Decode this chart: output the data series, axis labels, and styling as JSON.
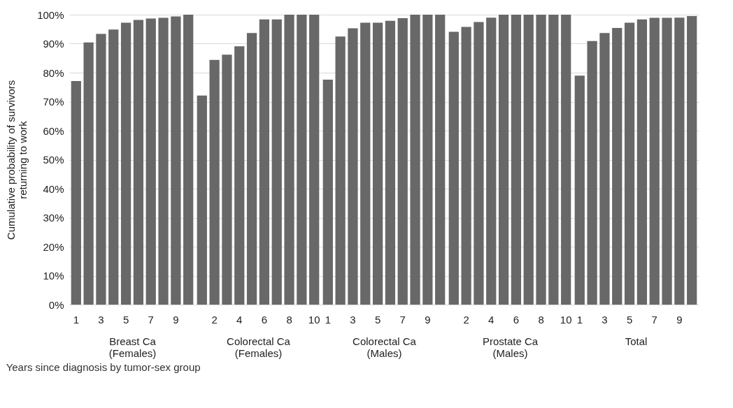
{
  "chart_data": [
    {
      "type": "bar",
      "xlabel": "Breast Ca\n(Females)",
      "ylabel": "Cumulative probability of survivors\nreturning to work",
      "color": "#686868",
      "categories": [
        "1",
        null,
        "3",
        null,
        "5",
        null,
        "7",
        null,
        "9",
        null
      ],
      "values": [
        77.1,
        90.4,
        93.4,
        94.9,
        97.2,
        98.2,
        98.7,
        98.9,
        99.4,
        100
      ],
      "ylim": [
        0,
        100
      ],
      "yticks": [
        {
          "value": 0,
          "label": "0%"
        },
        {
          "value": 10,
          "label": "10%"
        },
        {
          "value": 20,
          "label": "20%"
        },
        {
          "value": 30,
          "label": "30%"
        },
        {
          "value": 40,
          "label": "40%"
        },
        {
          "value": 50,
          "label": "50%"
        },
        {
          "value": 60,
          "label": "60%"
        },
        {
          "value": 70,
          "label": "70%"
        },
        {
          "value": 80,
          "label": "80%"
        },
        {
          "value": 90,
          "label": "90%"
        },
        {
          "value": 100,
          "label": "100%"
        }
      ],
      "grid": "y"
    },
    {
      "type": "bar",
      "xlabel": "Colorectal Ca\n(Females)",
      "color": "#686868",
      "categories": [
        null,
        "2",
        null,
        "4",
        null,
        "6",
        null,
        "8",
        null,
        "10"
      ],
      "values": [
        72.1,
        84.4,
        86.2,
        89.1,
        93.7,
        98.4,
        98.4,
        100,
        100,
        100
      ],
      "ylim": [
        0,
        100
      ],
      "yticks": [
        0,
        10,
        20,
        30,
        40,
        50,
        60,
        70,
        80,
        90,
        100
      ],
      "grid": "y",
      "tick_labels": "x"
    },
    {
      "type": "bar",
      "xlabel": "Colorectal Ca\n(Males)",
      "color": "#686868",
      "categories": [
        "1",
        null,
        "3",
        null,
        "5",
        null,
        "7",
        null,
        "9",
        null
      ],
      "values": [
        77.6,
        92.5,
        95.3,
        97.2,
        97.2,
        97.9,
        98.8,
        100,
        100,
        100
      ],
      "ylim": [
        0,
        100
      ],
      "yticks": [
        0,
        10,
        20,
        30,
        40,
        50,
        60,
        70,
        80,
        90,
        100
      ],
      "grid": "y",
      "tick_labels": "x",
      "annotations": [
        "Years since diagnosis by tumor-sex group"
      ]
    },
    {
      "type": "bar",
      "xlabel": "Prostate Ca\n(Males)",
      "color": "#686868",
      "categories": [
        null,
        "2",
        null,
        "4",
        null,
        "6",
        null,
        "8",
        null,
        "10"
      ],
      "values": [
        94.1,
        95.8,
        97.5,
        99.0,
        100,
        100,
        100,
        100,
        100,
        100
      ],
      "ylim": [
        0,
        100
      ],
      "yticks": [
        0,
        10,
        20,
        30,
        40,
        50,
        60,
        70,
        80,
        90,
        100
      ],
      "grid": "y",
      "tick_labels": "x"
    },
    {
      "type": "bar",
      "xlabel": "Total",
      "color": "#686868",
      "categories": [
        "1",
        null,
        "3",
        null,
        "5",
        null,
        "7",
        null,
        "9",
        null
      ],
      "values": [
        79.0,
        90.9,
        93.7,
        95.4,
        97.2,
        98.4,
        98.9,
        98.9,
        99.0,
        99.5
      ],
      "ylim": [
        0,
        100
      ],
      "yticks": [
        0,
        10,
        20,
        30,
        40,
        50,
        60,
        70,
        80,
        90,
        100
      ],
      "grid": "y",
      "tick_labels": "x"
    }
  ]
}
